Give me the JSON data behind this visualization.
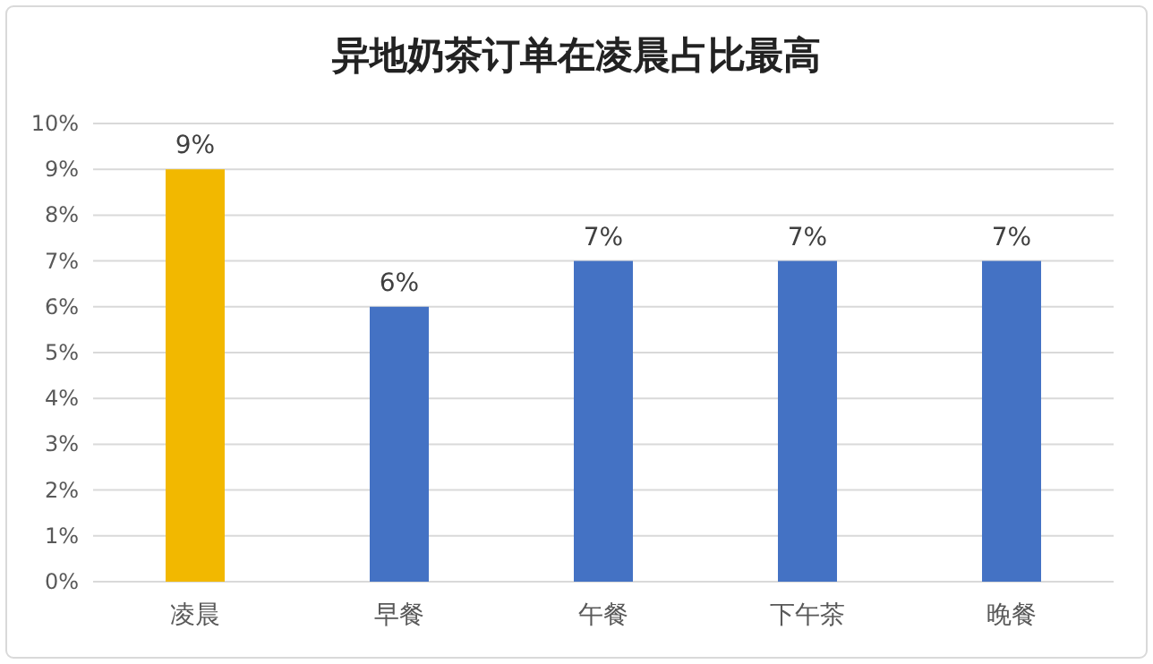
{
  "chart_data": {
    "type": "bar",
    "title": "异地奶茶订单在凌晨占比最高",
    "categories": [
      "凌晨",
      "早餐",
      "午餐",
      "下午茶",
      "晚餐"
    ],
    "values": [
      9,
      6,
      7,
      7,
      7
    ],
    "colors": [
      "#f2b800",
      "#4472c4",
      "#4472c4",
      "#4472c4",
      "#4472c4"
    ],
    "value_labels": [
      "9%",
      "6%",
      "7%",
      "7%",
      "7%"
    ],
    "ylim": [
      0,
      10
    ],
    "yticks": [
      {
        "value": 0,
        "label": "0%"
      },
      {
        "value": 1,
        "label": "1%"
      },
      {
        "value": 2,
        "label": "2%"
      },
      {
        "value": 3,
        "label": "3%"
      },
      {
        "value": 4,
        "label": "4%"
      },
      {
        "value": 5,
        "label": "5%"
      },
      {
        "value": 6,
        "label": "6%"
      },
      {
        "value": 7,
        "label": "7%"
      },
      {
        "value": 8,
        "label": "8%"
      },
      {
        "value": 9,
        "label": "9%"
      },
      {
        "value": 10,
        "label": "10%"
      }
    ],
    "grid": "y"
  }
}
